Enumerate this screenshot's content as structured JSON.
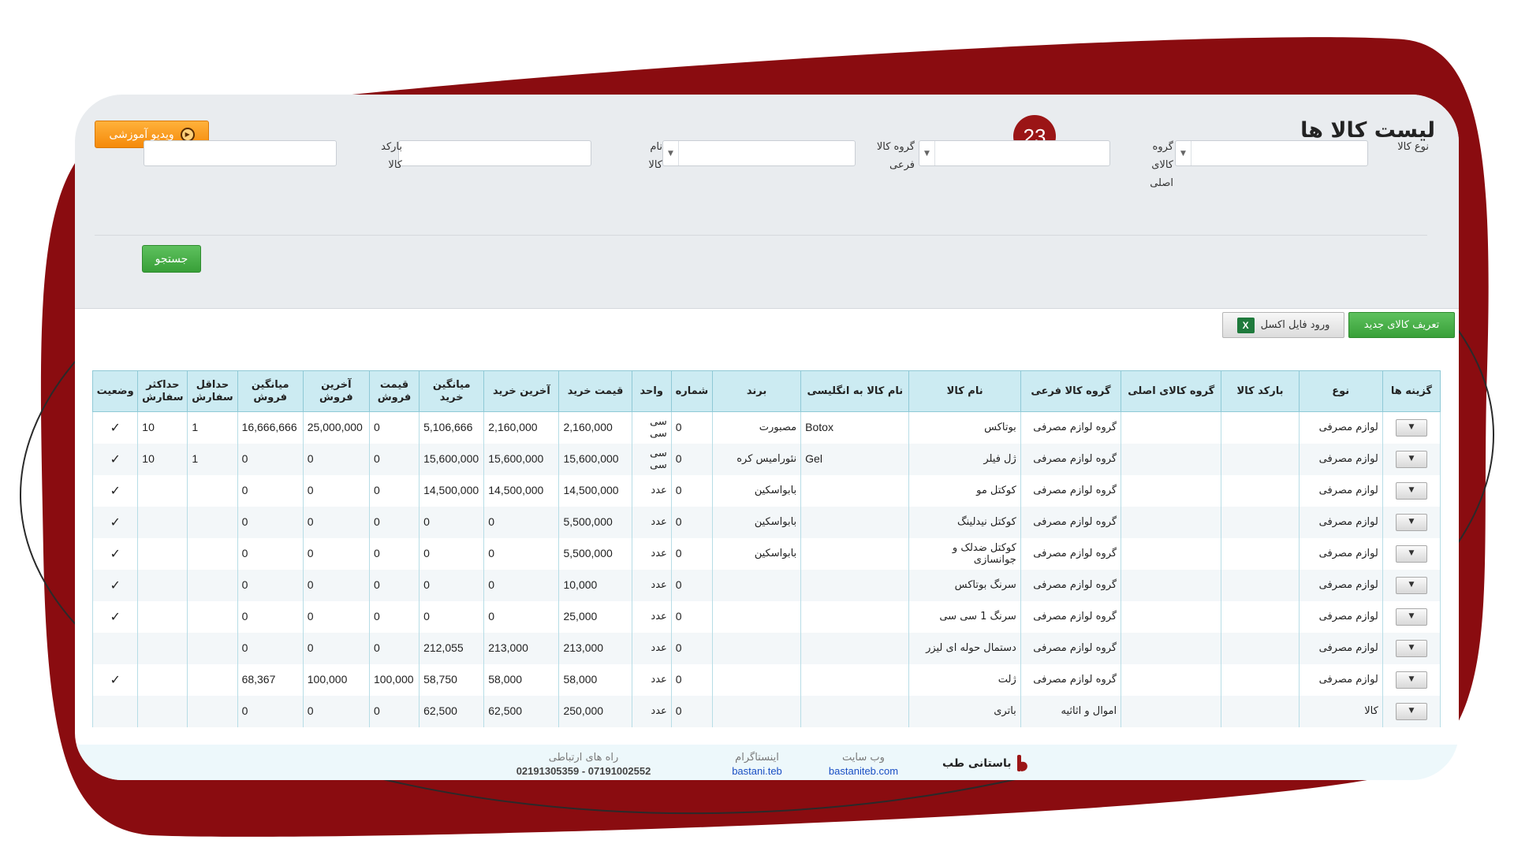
{
  "page": {
    "title": "لیست کالا ها",
    "step_badge": "23",
    "video_button": "ویدیو آموزشی",
    "accent": "#9b1516"
  },
  "filters": {
    "type_label": "نوع کالا",
    "main_group_label": "گروه کالای اصلی",
    "sub_group_label": "گروه کالا فرعی",
    "name_label": "نام کالا",
    "barcode_label": "بارکد کالا",
    "search_button": "جستجو"
  },
  "actions": {
    "new_item": "تعریف کالای جدید",
    "import_excel": "ورود فایل اکسل",
    "excel_icon_letter": "X"
  },
  "table": {
    "columns": [
      "گزینه ها",
      "نوع",
      "بارکد کالا",
      "گروه کالای اصلی",
      "گروه کالا فرعی",
      "نام کالا",
      "نام کالا به انگلیسی",
      "برند",
      "شماره",
      "واحد",
      "قیمت خرید",
      "آخرین خرید",
      "میانگین خرید",
      "قیمت فروش",
      "آخرین فروش",
      "میانگین فروش",
      "حداقل سفارش",
      "حداکثر سفارش",
      "وضعیت"
    ],
    "rows": [
      {
        "type": "لوازم مصرفی",
        "barcode": "",
        "main_group": "",
        "sub_group": "گروه لوازم مصرفی",
        "name": "بوتاکس",
        "name_en": "Botox",
        "brand": "مصبورت",
        "number": "0",
        "unit": "سی سی",
        "buy_price": "2,160,000",
        "last_buy": "2,160,000",
        "avg_buy": "5,106,666",
        "sell_price": "0",
        "last_sell": "25,000,000",
        "avg_sell": "16,666,666",
        "min_order": "1",
        "max_order": "10",
        "status": "✓"
      },
      {
        "type": "لوازم مصرفی",
        "barcode": "",
        "main_group": "",
        "sub_group": "گروه لوازم مصرفی",
        "name": "ژل فیلر",
        "name_en": "Gel",
        "brand": "نئوراميس كره",
        "number": "0",
        "unit": "سی سی",
        "buy_price": "15,600,000",
        "last_buy": "15,600,000",
        "avg_buy": "15,600,000",
        "sell_price": "0",
        "last_sell": "0",
        "avg_sell": "0",
        "min_order": "1",
        "max_order": "10",
        "status": "✓"
      },
      {
        "type": "لوازم مصرفی",
        "barcode": "",
        "main_group": "",
        "sub_group": "گروه لوازم مصرفی",
        "name": "کوکتل مو",
        "name_en": "",
        "brand": "بابواسکین",
        "number": "0",
        "unit": "عدد",
        "buy_price": "14,500,000",
        "last_buy": "14,500,000",
        "avg_buy": "14,500,000",
        "sell_price": "0",
        "last_sell": "0",
        "avg_sell": "0",
        "min_order": "",
        "max_order": "",
        "status": "✓"
      },
      {
        "type": "لوازم مصرفی",
        "barcode": "",
        "main_group": "",
        "sub_group": "گروه لوازم مصرفی",
        "name": "کوکتل نیدلینگ",
        "name_en": "",
        "brand": "بابواسکین",
        "number": "0",
        "unit": "عدد",
        "buy_price": "5,500,000",
        "last_buy": "0",
        "avg_buy": "0",
        "sell_price": "0",
        "last_sell": "0",
        "avg_sell": "0",
        "min_order": "",
        "max_order": "",
        "status": "✓"
      },
      {
        "type": "لوازم مصرفی",
        "barcode": "",
        "main_group": "",
        "sub_group": "گروه لوازم مصرفی",
        "name": "کوکتل ضدلک و جوانسازی",
        "name_en": "",
        "brand": "بابواسکین",
        "number": "0",
        "unit": "عدد",
        "buy_price": "5,500,000",
        "last_buy": "0",
        "avg_buy": "0",
        "sell_price": "0",
        "last_sell": "0",
        "avg_sell": "0",
        "min_order": "",
        "max_order": "",
        "status": "✓"
      },
      {
        "type": "لوازم مصرفی",
        "barcode": "",
        "main_group": "",
        "sub_group": "گروه لوازم مصرفی",
        "name": "سرنگ بوتاکس",
        "name_en": "",
        "brand": "",
        "number": "0",
        "unit": "عدد",
        "buy_price": "10,000",
        "last_buy": "0",
        "avg_buy": "0",
        "sell_price": "0",
        "last_sell": "0",
        "avg_sell": "0",
        "min_order": "",
        "max_order": "",
        "status": "✓"
      },
      {
        "type": "لوازم مصرفی",
        "barcode": "",
        "main_group": "",
        "sub_group": "گروه لوازم مصرفی",
        "name": "سرنگ 1 سی سی",
        "name_en": "",
        "brand": "",
        "number": "0",
        "unit": "عدد",
        "buy_price": "25,000",
        "last_buy": "0",
        "avg_buy": "0",
        "sell_price": "0",
        "last_sell": "0",
        "avg_sell": "0",
        "min_order": "",
        "max_order": "",
        "status": "✓"
      },
      {
        "type": "لوازم مصرفی",
        "barcode": "",
        "main_group": "",
        "sub_group": "گروه لوازم مصرفی",
        "name": "دستمال حوله ای لیزر",
        "name_en": "",
        "brand": "",
        "number": "0",
        "unit": "عدد",
        "buy_price": "213,000",
        "last_buy": "213,000",
        "avg_buy": "212,055",
        "sell_price": "0",
        "last_sell": "0",
        "avg_sell": "0",
        "min_order": "",
        "max_order": "",
        "status": ""
      },
      {
        "type": "لوازم مصرفی",
        "barcode": "",
        "main_group": "",
        "sub_group": "گروه لوازم مصرفی",
        "name": "ژلت",
        "name_en": "",
        "brand": "",
        "number": "0",
        "unit": "عدد",
        "buy_price": "58,000",
        "last_buy": "58,000",
        "avg_buy": "58,750",
        "sell_price": "100,000",
        "last_sell": "100,000",
        "avg_sell": "68,367",
        "min_order": "",
        "max_order": "",
        "status": "✓"
      },
      {
        "type": "کالا",
        "barcode": "",
        "main_group": "",
        "sub_group": "اموال و اثاثیه",
        "name": "باتری",
        "name_en": "",
        "brand": "",
        "number": "0",
        "unit": "عدد",
        "buy_price": "250,000",
        "last_buy": "62,500",
        "avg_buy": "62,500",
        "sell_price": "0",
        "last_sell": "0",
        "avg_sell": "0",
        "min_order": "",
        "max_order": "",
        "status": ""
      }
    ]
  },
  "footer": {
    "brand": "باستانی طب",
    "website_caption": "وب سایت",
    "website": "bastaniteb.com",
    "instagram_caption": "اینستاگرام",
    "instagram": "bastani.teb",
    "contact_caption": "راه های ارتباطی",
    "phones": "07191002552 - 02191305359"
  }
}
